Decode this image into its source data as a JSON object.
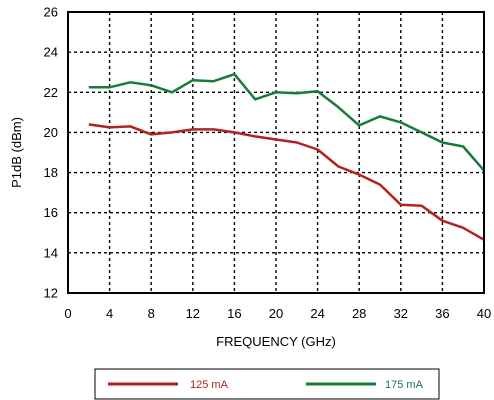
{
  "chart_data": {
    "type": "line",
    "title": "",
    "xlabel": "FREQUENCY (GHz)",
    "ylabel": "P1dB (dBm)",
    "xlim": [
      0,
      40
    ],
    "ylim": [
      12,
      26
    ],
    "xticks": [
      "0",
      "4",
      "8",
      "12",
      "16",
      "20",
      "24",
      "28",
      "32",
      "36",
      "40"
    ],
    "yticks": [
      "12",
      "14",
      "16",
      "18",
      "20",
      "22",
      "24",
      "26"
    ],
    "grid": true,
    "legend_placement": "bottom",
    "series": [
      {
        "name": "125 mA",
        "color": "#b22222",
        "x": [
          2,
          4,
          6,
          8,
          10,
          12,
          14,
          16,
          18,
          20,
          22,
          24,
          26,
          28,
          30,
          32,
          34,
          36,
          38,
          40
        ],
        "y": [
          20.4,
          20.25,
          20.3,
          19.9,
          20.0,
          20.15,
          20.15,
          20.0,
          19.8,
          19.65,
          19.5,
          19.15,
          18.3,
          17.9,
          17.4,
          16.4,
          16.35,
          15.6,
          15.25,
          14.65
        ]
      },
      {
        "name": "175 mA",
        "color": "#1a7a3a",
        "x": [
          2,
          4,
          6,
          8,
          10,
          12,
          14,
          16,
          18,
          20,
          22,
          24,
          26,
          28,
          30,
          32,
          34,
          36,
          38,
          40
        ],
        "y": [
          22.25,
          22.25,
          22.5,
          22.35,
          22.0,
          22.6,
          22.55,
          22.9,
          21.65,
          22.0,
          21.95,
          22.05,
          21.25,
          20.35,
          20.8,
          20.5,
          20.0,
          19.5,
          19.3,
          18.1
        ]
      }
    ]
  }
}
